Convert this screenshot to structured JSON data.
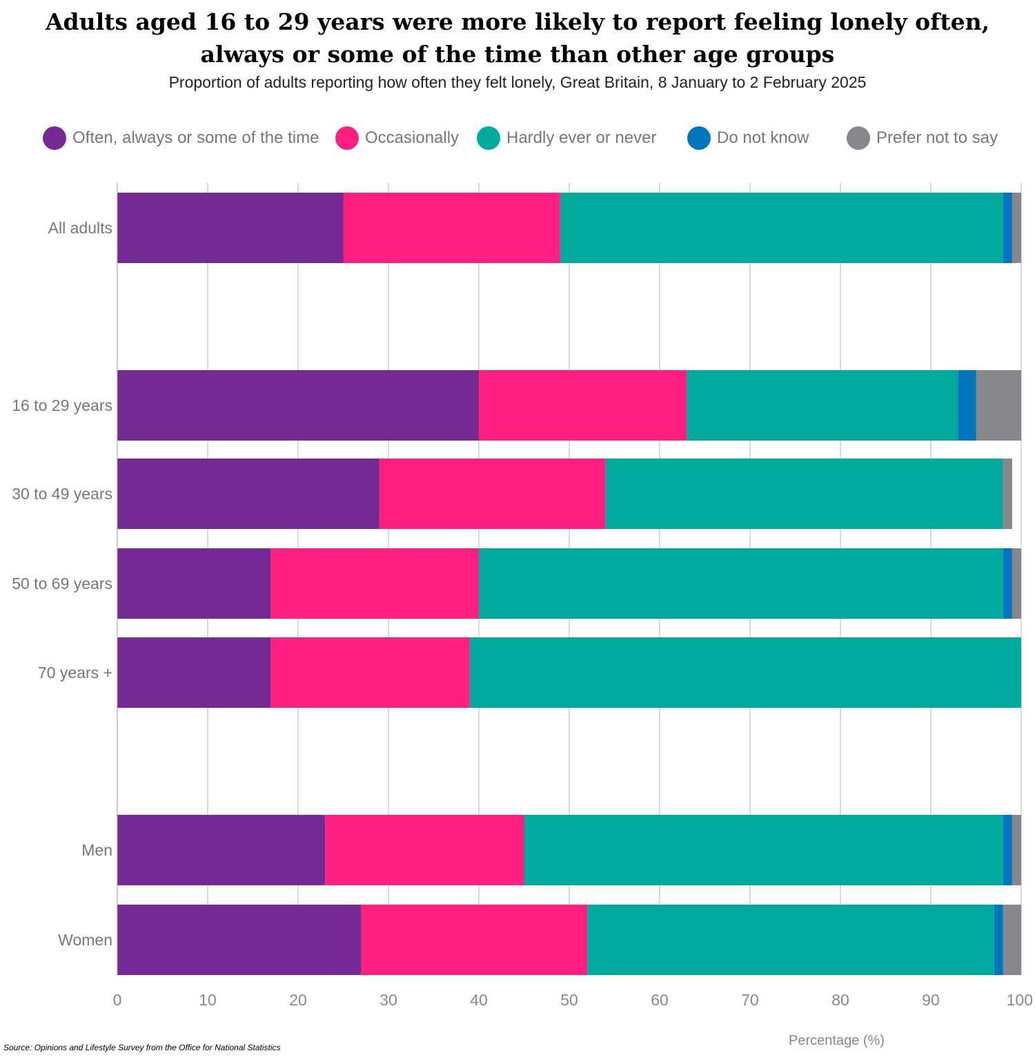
{
  "chart_data": {
    "type": "bar",
    "orientation": "horizontal",
    "stacked": true,
    "title": "Adults aged 16 to 29 years were more likely to report feeling lonely often, always or some of the time than other age groups",
    "subtitle": "Proportion of adults reporting how often they felt lonely, Great Britain, 8 January to 2 February 2025",
    "xlabel": "Percentage (%)",
    "ylabel": "",
    "xlim": [
      0,
      100
    ],
    "xticks": [
      "0",
      "10",
      "20",
      "30",
      "40",
      "50",
      "60",
      "70",
      "80",
      "90",
      "100"
    ],
    "grid": true,
    "legend_position": "top",
    "categories": [
      "All adults",
      "16 to 29 years",
      "30 to 49 years",
      "50 to 69 years",
      "70 years +",
      "Men",
      "Women"
    ],
    "series": [
      {
        "name": "Often, always or some of the time",
        "color": "#752993",
        "values": [
          25,
          40,
          29,
          17,
          17,
          23,
          27
        ]
      },
      {
        "name": "Occasionally",
        "color": "#ff1f80",
        "values": [
          24,
          23,
          25,
          23,
          22,
          22,
          25
        ]
      },
      {
        "name": "Hardly ever or never",
        "color": "#00a99d",
        "values": [
          49,
          30,
          44,
          58,
          61,
          53,
          45
        ]
      },
      {
        "name": "Do not know",
        "color": "#0075be",
        "values": [
          1,
          2,
          0,
          1,
          0,
          1,
          1
        ]
      },
      {
        "name": "Prefer not to say",
        "color": "#87878b",
        "values": [
          1,
          5,
          1,
          1,
          0,
          1,
          2
        ]
      }
    ],
    "source": "Source: Opinions and Lifestyle Survey from the Office for National Statistics"
  }
}
